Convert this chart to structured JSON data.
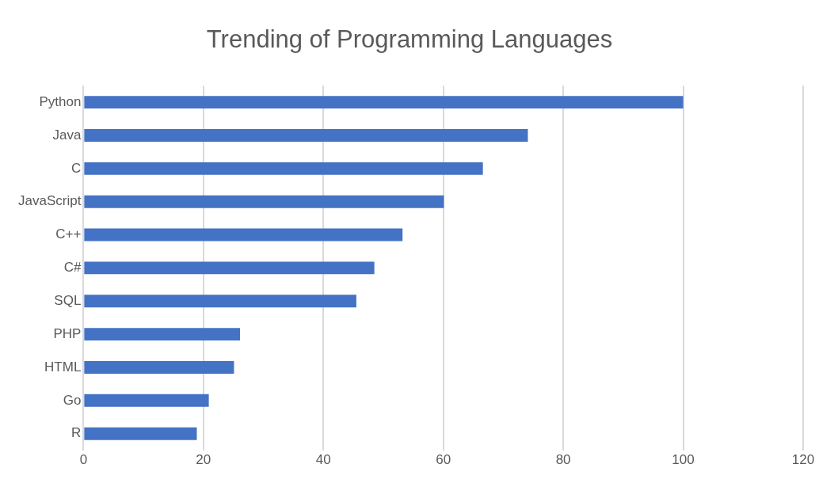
{
  "chart_data": {
    "type": "bar",
    "orientation": "horizontal",
    "title": "Trending of Programming Languages",
    "categories": [
      "Python",
      "Java",
      "C",
      "JavaScript",
      "C++",
      "C#",
      "SQL",
      "PHP",
      "HTML",
      "Go",
      "R"
    ],
    "values": [
      100,
      74.1,
      66.6,
      60.1,
      53.2,
      48.5,
      45.5,
      26.1,
      25.1,
      20.9,
      18.9
    ],
    "color": "#4472c4",
    "xlim": [
      0,
      120
    ],
    "xticks": [
      0,
      20,
      40,
      60,
      80,
      100,
      120
    ],
    "grid": "x",
    "legend": false
  }
}
